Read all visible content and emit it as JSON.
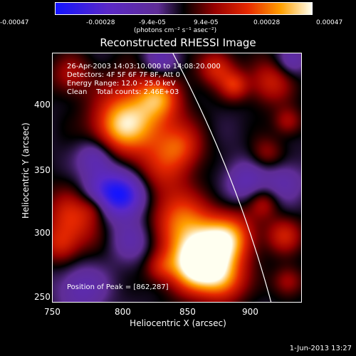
{
  "colorbar": {
    "ticks": [
      "-0.00047",
      "-0.00028",
      "-9.4e-05",
      "9.4e-05",
      "0.00028",
      "0.00047"
    ],
    "unit": "(photons cm⁻² s⁻¹ asec⁻²)"
  },
  "title": "Reconstructed RHESSI Image",
  "info": {
    "time_range": "26-Apr-2003 14:03:10.000 to 14:08:20.000",
    "detectors": "Detectors: 4F 5F 6F 7F 8F, Att 0",
    "energy": "Energy Range: 12.0 - 25.0 keV",
    "clean": "Clean    Total counts: 2.46E+03",
    "peak": "Position of Peak = [862,287]"
  },
  "axes": {
    "xlabel": "Heliocentric X (arcsec)",
    "ylabel": "Heliocentric Y (arcsec)",
    "xticks": [
      "750",
      "800",
      "850",
      "900"
    ],
    "yticks": [
      "400",
      "350",
      "300",
      "250"
    ],
    "xrange": [
      747,
      945
    ],
    "yrange": [
      249,
      447
    ]
  },
  "timestamp": "1-Jun-2013 13:27"
}
